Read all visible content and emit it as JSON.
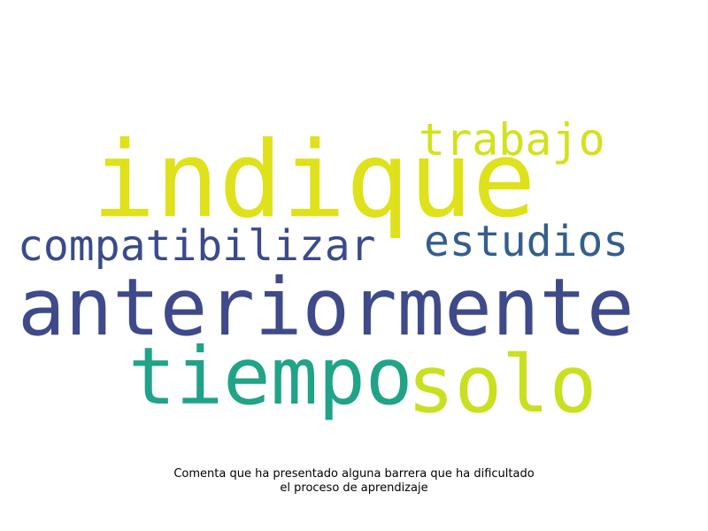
{
  "words": [
    {
      "text": "indique",
      "color": "#dfe11b"
    },
    {
      "text": "trabajo",
      "color": "#d2e21b"
    },
    {
      "text": "compatibilizar",
      "color": "#3a4a8a"
    },
    {
      "text": "estudios",
      "color": "#355e8d"
    },
    {
      "text": "anteriormente",
      "color": "#3e4a89"
    },
    {
      "text": "tiempo",
      "color": "#20a386"
    },
    {
      "text": "solo",
      "color": "#c8e020"
    }
  ],
  "caption": {
    "line1": "Comenta que ha presentado alguna barrera que ha dificultado",
    "line2": "el proceso de aprendizaje"
  }
}
